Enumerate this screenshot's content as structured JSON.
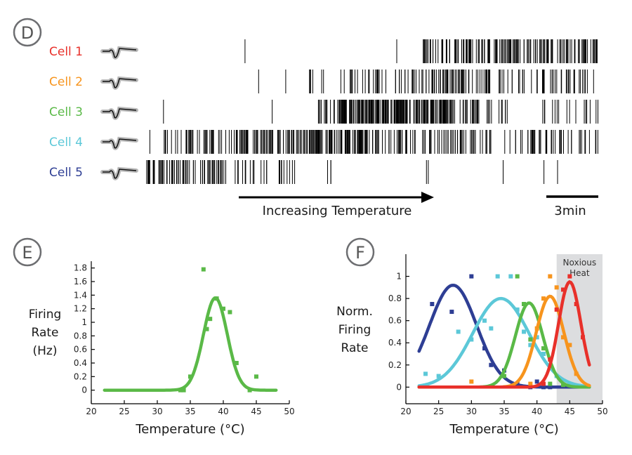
{
  "panels": {
    "d": {
      "letter": "D"
    },
    "e": {
      "letter": "E"
    },
    "f": {
      "letter": "F"
    }
  },
  "raster": {
    "cells": [
      {
        "label": "Cell 1",
        "color": "#e8302a",
        "segments": [
          [
            0.22,
            0.22,
            1
          ],
          [
            0.555,
            0.555,
            1
          ],
          [
            0.61,
            0.66,
            18
          ],
          [
            0.66,
            0.8,
            60
          ],
          [
            0.8,
            1.0,
            80
          ]
        ]
      },
      {
        "label": "Cell 2",
        "color": "#f7941d",
        "segments": [
          [
            0.25,
            0.25,
            1
          ],
          [
            0.31,
            0.31,
            1
          ],
          [
            0.36,
            0.4,
            6
          ],
          [
            0.43,
            0.55,
            20
          ],
          [
            0.55,
            0.8,
            80
          ],
          [
            0.8,
            1.0,
            40
          ]
        ]
      },
      {
        "label": "Cell 3",
        "color": "#5ab947",
        "segments": [
          [
            0.04,
            0.04,
            1
          ],
          [
            0.28,
            0.28,
            1
          ],
          [
            0.38,
            0.43,
            14
          ],
          [
            0.43,
            0.68,
            200
          ],
          [
            0.68,
            0.8,
            30
          ],
          [
            0.87,
            1.0,
            16
          ]
        ]
      },
      {
        "label": "Cell 4",
        "color": "#5cc8d8",
        "segments": [
          [
            0.01,
            0.01,
            1
          ],
          [
            0.04,
            0.2,
            40
          ],
          [
            0.2,
            0.5,
            160
          ],
          [
            0.5,
            0.75,
            70
          ],
          [
            0.75,
            1.0,
            50
          ]
        ]
      },
      {
        "label": "Cell 5",
        "color": "#2e3e94",
        "segments": [
          [
            0.0,
            0.17,
            70
          ],
          [
            0.17,
            0.34,
            24
          ],
          [
            0.39,
            0.41,
            3
          ],
          [
            0.62,
            0.63,
            2
          ],
          [
            0.79,
            0.79,
            1
          ],
          [
            0.88,
            0.88,
            1
          ],
          [
            0.91,
            0.91,
            1
          ]
        ]
      }
    ],
    "arrow_label": "Increasing Temperature",
    "scalebar_label": "3min"
  },
  "chart_data": [
    {
      "type": "scatter",
      "xlabel": "Temperature (°C)",
      "ylabel": [
        "Firing",
        "Rate",
        "(Hz)"
      ],
      "xlim": [
        20,
        50
      ],
      "ylim": [
        -0.2,
        1.9
      ],
      "xticks": [
        20,
        25,
        30,
        35,
        40,
        45,
        50
      ],
      "yticks": [
        0,
        0.2,
        0.4,
        0.6,
        0.8,
        1,
        1.2,
        1.4,
        1.6,
        1.8
      ],
      "series": [
        {
          "color": "#5ab947",
          "points": [
            [
              33.5,
              0
            ],
            [
              34,
              0
            ],
            [
              35,
              0.2
            ],
            [
              37,
              1.78
            ],
            [
              37.5,
              0.9
            ],
            [
              38,
              1.05
            ],
            [
              39,
              1.35
            ],
            [
              40,
              1.2
            ],
            [
              41,
              1.15
            ],
            [
              42,
              0.4
            ],
            [
              44,
              0
            ],
            [
              45,
              0.2
            ]
          ],
          "fit": {
            "amplitude": 1.36,
            "mean": 38.8,
            "sd": 1.8,
            "x_range": [
              22,
              48
            ]
          }
        }
      ]
    },
    {
      "type": "scatter",
      "xlabel": "Temperature (°C)",
      "ylabel": [
        "Norm.",
        "Firing",
        "Rate"
      ],
      "xlim": [
        20,
        50
      ],
      "ylim": [
        -0.15,
        1.2
      ],
      "xticks": [
        20,
        25,
        30,
        35,
        40,
        45,
        50
      ],
      "yticks": [
        0,
        0.2,
        0.4,
        0.6,
        0.8,
        1
      ],
      "shaded_region": {
        "x": [
          43,
          50
        ],
        "label": [
          "Noxious",
          "Heat"
        ],
        "color": "#dcdddf"
      },
      "series": [
        {
          "color": "#2e3e94",
          "points": [
            [
              24,
              0.75
            ],
            [
              27,
              0.68
            ],
            [
              30,
              1.0
            ],
            [
              32,
              0.35
            ],
            [
              33,
              0.2
            ],
            [
              35,
              0.15
            ],
            [
              37,
              0.03
            ],
            [
              39,
              0.0
            ],
            [
              40,
              0.05
            ],
            [
              41,
              0.0
            ],
            [
              42,
              0.0
            ]
          ],
          "fit": {
            "amplitude": 0.92,
            "mean": 27.2,
            "sd": 3.6,
            "x_range": [
              22,
              48
            ]
          }
        },
        {
          "color": "#5cc8d8",
          "points": [
            [
              23,
              0.12
            ],
            [
              25,
              0.1
            ],
            [
              28,
              0.5
            ],
            [
              30,
              0.43
            ],
            [
              32,
              0.6
            ],
            [
              33,
              0.53
            ],
            [
              34,
              1.0
            ],
            [
              36,
              1.0
            ],
            [
              37,
              0.7
            ],
            [
              38,
              0.5
            ],
            [
              39,
              0.38
            ],
            [
              40,
              0.45
            ],
            [
              41,
              0.3
            ],
            [
              43,
              0.1
            ],
            [
              45,
              0.02
            ]
          ],
          "fit": {
            "amplitude": 0.8,
            "mean": 34.5,
            "sd": 4.3,
            "x_range": [
              22,
              48
            ]
          }
        },
        {
          "color": "#5ab947",
          "points": [
            [
              35,
              0.1
            ],
            [
              37,
              1.0
            ],
            [
              38,
              0.75
            ],
            [
              39,
              0.43
            ],
            [
              41,
              0.35
            ],
            [
              42,
              0.03
            ],
            [
              44,
              0.02
            ]
          ],
          "fit": {
            "amplitude": 0.76,
            "mean": 38.8,
            "sd": 2.1,
            "x_range": [
              22,
              48
            ]
          }
        },
        {
          "color": "#f7941d",
          "points": [
            [
              30,
              0.05
            ],
            [
              39,
              0.03
            ],
            [
              40,
              0.53
            ],
            [
              41,
              0.8
            ],
            [
              42,
              1.0
            ],
            [
              43,
              0.9
            ],
            [
              44,
              0.45
            ],
            [
              45,
              0.38
            ],
            [
              46,
              0.12
            ]
          ],
          "fit": {
            "amplitude": 0.82,
            "mean": 42.0,
            "sd": 2.1,
            "x_range": [
              22,
              48
            ]
          }
        },
        {
          "color": "#e8302a",
          "points": [
            [
              41,
              0.03
            ],
            [
              42,
              0.25
            ],
            [
              43,
              0.7
            ],
            [
              44,
              0.88
            ],
            [
              45,
              1.0
            ],
            [
              46,
              0.75
            ],
            [
              47,
              0.45
            ]
          ],
          "fit": {
            "amplitude": 0.95,
            "mean": 45.0,
            "sd": 1.7,
            "x_range": [
              22,
              48
            ]
          }
        }
      ]
    }
  ]
}
